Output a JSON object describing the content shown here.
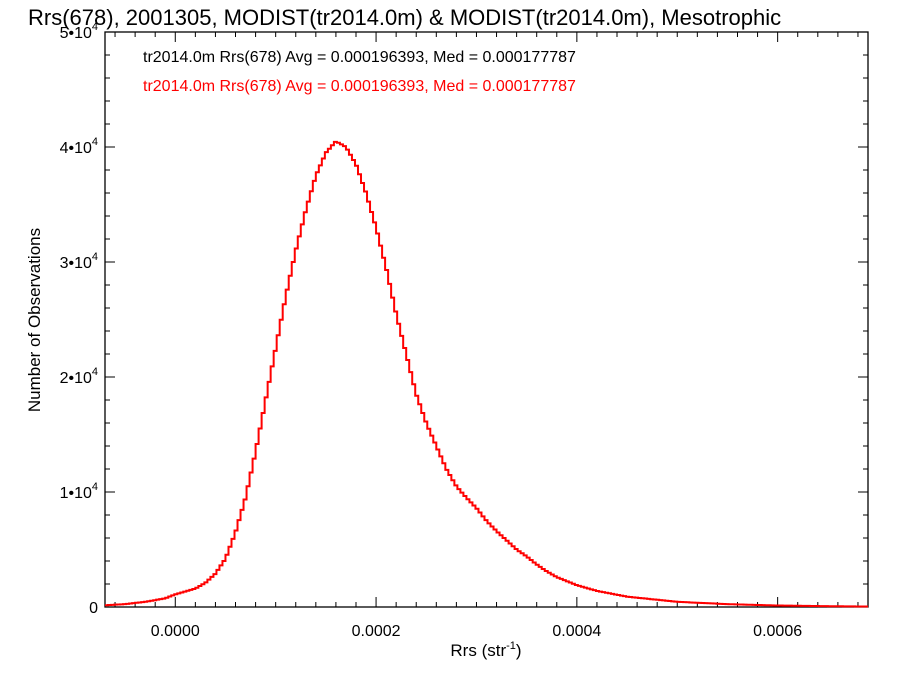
{
  "chart_data": {
    "type": "step",
    "title": "Rrs(678), 2001305, MODIST(tr2014.0m) & MODIST(tr2014.0m), Mesotrophic",
    "xlabel": "Rrs (str",
    "xlabel_sup": "-1",
    "xlabel_close": ")",
    "ylabel": "Number of Observations",
    "xlim": [
      -7e-05,
      0.00069
    ],
    "ylim": [
      0,
      50000
    ],
    "x_ticks": [
      {
        "value": 0.0,
        "label": "0.0000"
      },
      {
        "value": 0.0002,
        "label": "0.0002"
      },
      {
        "value": 0.0004,
        "label": "0.0004"
      },
      {
        "value": 0.0006,
        "label": "0.0006"
      }
    ],
    "y_ticks": [
      {
        "value": 0,
        "mant": "0",
        "exp": ""
      },
      {
        "value": 10000,
        "mant": "1•10",
        "exp": "4"
      },
      {
        "value": 20000,
        "mant": "2•10",
        "exp": "4"
      },
      {
        "value": 30000,
        "mant": "3•10",
        "exp": "4"
      },
      {
        "value": 40000,
        "mant": "4•10",
        "exp": "4"
      },
      {
        "value": 50000,
        "mant": "5•10",
        "exp": "4"
      }
    ],
    "legend": [
      {
        "text": "tr2014.0m Rrs(678) Avg = 0.000196393, Med = 0.000177787",
        "color": "#000000"
      },
      {
        "text": "tr2014.0m Rrs(678) Avg = 0.000196393, Med = 0.000177787",
        "color": "#ff0000"
      }
    ],
    "series": [
      {
        "color": "#ff0000",
        "points": [
          [
            -7e-05,
            150
          ],
          [
            -5e-05,
            250
          ],
          [
            -3e-05,
            450
          ],
          [
            -1e-05,
            750
          ],
          [
            0.0,
            1100
          ],
          [
            2e-05,
            1600
          ],
          [
            3e-05,
            2100
          ],
          [
            4e-05,
            2900
          ],
          [
            5e-05,
            4200
          ],
          [
            6e-05,
            6500
          ],
          [
            7e-05,
            9500
          ],
          [
            8e-05,
            13500
          ],
          [
            9e-05,
            18000
          ],
          [
            0.0001,
            22500
          ],
          [
            0.00011,
            27000
          ],
          [
            0.00012,
            31000
          ],
          [
            0.00013,
            34500
          ],
          [
            0.00014,
            37500
          ],
          [
            0.00015,
            39500
          ],
          [
            0.00016,
            40500
          ],
          [
            0.00017,
            40000
          ],
          [
            0.00018,
            38500
          ],
          [
            0.00019,
            36000
          ],
          [
            0.0002,
            33000
          ],
          [
            0.00021,
            29500
          ],
          [
            0.00022,
            25500
          ],
          [
            0.00023,
            22000
          ],
          [
            0.00024,
            18500
          ],
          [
            0.00025,
            16000
          ],
          [
            0.00026,
            14000
          ],
          [
            0.00027,
            12000
          ],
          [
            0.00028,
            10500
          ],
          [
            0.00029,
            9500
          ],
          [
            0.0003,
            8600
          ],
          [
            0.00031,
            7500
          ],
          [
            0.00032,
            6600
          ],
          [
            0.00033,
            5800
          ],
          [
            0.00034,
            5000
          ],
          [
            0.00035,
            4400
          ],
          [
            0.00036,
            3700
          ],
          [
            0.00037,
            3100
          ],
          [
            0.00038,
            2600
          ],
          [
            0.0004,
            1900
          ],
          [
            0.00042,
            1400
          ],
          [
            0.00045,
            900
          ],
          [
            0.0005,
            450
          ],
          [
            0.00055,
            250
          ],
          [
            0.0006,
            130
          ],
          [
            0.00065,
            70
          ],
          [
            0.00069,
            40
          ]
        ]
      }
    ]
  }
}
